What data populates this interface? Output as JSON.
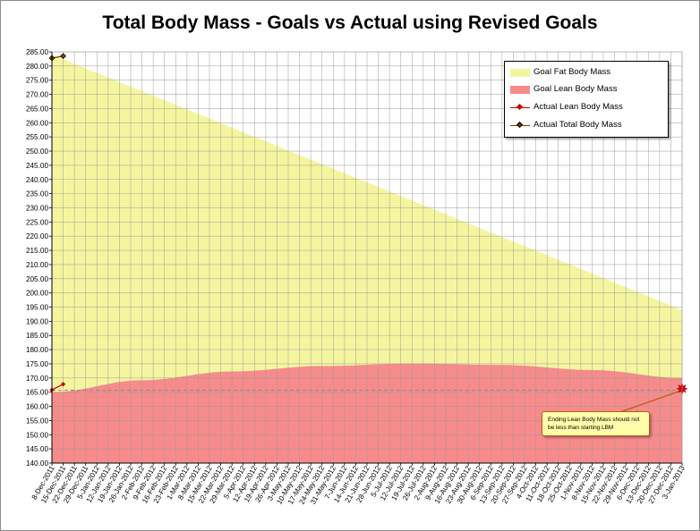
{
  "chart_data": {
    "type": "area",
    "title": "Total Body Mass - Goals vs Actual using Revised Goals",
    "xlabel": "",
    "ylabel": "",
    "ylim": [
      140,
      285
    ],
    "yticks": [
      "140.00",
      "145.00",
      "150.00",
      "155.00",
      "160.00",
      "165.00",
      "170.00",
      "175.00",
      "180.00",
      "185.00",
      "190.00",
      "195.00",
      "200.00",
      "205.00",
      "210.00",
      "215.00",
      "220.00",
      "225.00",
      "230.00",
      "235.00",
      "240.00",
      "245.00",
      "250.00",
      "255.00",
      "260.00",
      "265.00",
      "270.00",
      "275.00",
      "280.00",
      "285.00"
    ],
    "x_dates": [
      "8-Dec-2011",
      "15-Dec-2011",
      "22-Dec-2011",
      "29-Dec-2011",
      "5-Jan-2012",
      "12-Jan-2012",
      "19-Jan-2012",
      "26-Jan-2012",
      "2-Feb-2012",
      "9-Feb-2012",
      "16-Feb-2012",
      "23-Feb-2012",
      "1-Mar-2012",
      "8-Mar-2012",
      "15-Mar-2012",
      "22-Mar-2012",
      "29-Mar-2012",
      "5-Apr-2012",
      "12-Apr-2012",
      "19-Apr-2012",
      "26-Apr-2012",
      "3-May-2012",
      "10-May-2012",
      "17-May-2012",
      "24-May-2012",
      "31-May-2012",
      "7-Jun-2012",
      "14-Jun-2012",
      "21-Jun-2012",
      "28-Jun-2012",
      "5-Jul-2012",
      "12-Jul-2012",
      "19-Jul-2012",
      "26-Jul-2012",
      "2-Aug-2012",
      "9-Aug-2012",
      "16-Aug-2012",
      "23-Aug-2012",
      "30-Aug-2012",
      "6-Sep-2012",
      "13-Sep-2012",
      "20-Sep-2012",
      "27-Sep-2012",
      "4-Oct-2012",
      "11-Oct-2012",
      "18-Oct-2012",
      "25-Oct-2012",
      "1-Nov-2012",
      "8-Nov-2012",
      "15-Nov-2012",
      "22-Nov-2012",
      "29-Nov-2012",
      "6-Dec-2012",
      "13-Dec-2012",
      "20-Dec-2012",
      "27-Dec-2012",
      "3-Jan-2013"
    ],
    "grid": true,
    "legend_position": "top-right",
    "series": [
      {
        "name": "Goal Fat Body Mass",
        "kind": "area",
        "color": "#f5f5a0",
        "top_values_by_date": {
          "8-Dec-2011": 284.0,
          "3-Jan-2013": 194.0
        },
        "shape": "linear"
      },
      {
        "name": "Goal Lean Body Mass",
        "kind": "area",
        "color": "#f78b8b",
        "top_values_by_date": {
          "8-Dec-2011": 165.0,
          "2-Feb-2012": 169.2,
          "29-Mar-2012": 172.3,
          "24-May-2012": 174.2,
          "19-Jul-2012": 175.1,
          "13-Sep-2012": 174.6,
          "8-Nov-2012": 172.8,
          "3-Jan-2013": 170.0
        },
        "shape": "curve"
      },
      {
        "name": "Actual Lean Body Mass",
        "kind": "line",
        "color": "#cc0000",
        "marker": "diamond",
        "points": [
          {
            "x": "8-Dec-2011",
            "y": 165.8
          },
          {
            "x": "15-Dec-2011",
            "y": 167.8
          }
        ]
      },
      {
        "name": "Actual Total Body Mass",
        "kind": "line",
        "color": "#7a3d00",
        "marker": "diamond",
        "points": [
          {
            "x": "8-Dec-2011",
            "y": 282.8
          },
          {
            "x": "15-Dec-2011",
            "y": 283.5
          }
        ]
      }
    ],
    "reference_line": {
      "y": 165.7,
      "style": "dashed",
      "color": "#8a8a8a"
    },
    "target_marker": {
      "x": "3-Jan-2013",
      "y": 166.2,
      "color": "#dd0000"
    },
    "annotation": {
      "text": "Ending Lean Body Mass should not be less than starting LBM",
      "fill": "#fefeaa",
      "border": "#b85a12"
    }
  }
}
